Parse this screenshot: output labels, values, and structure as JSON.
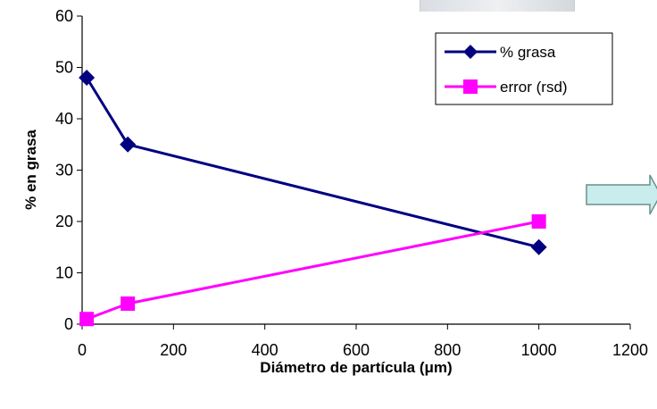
{
  "chart_data": {
    "type": "line",
    "xlabel": "Diámetro de partícula (μm)",
    "ylabel": "% en grasa",
    "xlim": [
      0,
      1200
    ],
    "ylim": [
      0,
      60
    ],
    "xticks": [
      0,
      200,
      400,
      600,
      800,
      1000,
      1200
    ],
    "yticks": [
      0,
      10,
      20,
      30,
      40,
      50,
      60
    ],
    "grid": false,
    "legend_position": "top-right",
    "series": [
      {
        "name": "% grasa",
        "color": "#000080",
        "marker": "diamond",
        "points": [
          {
            "x": 10,
            "y": 48
          },
          {
            "x": 100,
            "y": 35
          },
          {
            "x": 1000,
            "y": 15
          }
        ]
      },
      {
        "name": "error (rsd)",
        "color": "#ff00ff",
        "marker": "square",
        "points": [
          {
            "x": 10,
            "y": 1
          },
          {
            "x": 100,
            "y": 4
          },
          {
            "x": 1000,
            "y": 20
          }
        ]
      }
    ]
  }
}
